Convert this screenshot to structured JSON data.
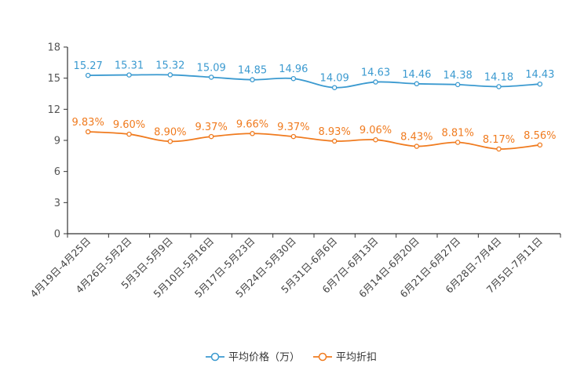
{
  "chart_data": {
    "type": "line",
    "title": "",
    "xlabel": "",
    "ylabel": "",
    "ylim": [
      0,
      18
    ],
    "yticks": [
      0,
      3,
      6,
      9,
      12,
      15,
      18
    ],
    "grid": false,
    "legend_position": "bottom-center",
    "categories": [
      "4月19日-4月25日",
      "4月26日-5月2日",
      "5月3日-5月9日",
      "5月10日-5月16日",
      "5月17日-5月23日",
      "5月24日-5月30日",
      "5月31日-6月6日",
      "6月7日-6月13日",
      "6月14日-6月20日",
      "6月21日-6月27日",
      "6月28日-7月4日",
      "7月5日-7月11日"
    ],
    "series": [
      {
        "name": "平均价格（万）",
        "color": "#3b9ad0",
        "values": [
          15.27,
          15.31,
          15.32,
          15.09,
          14.85,
          14.96,
          14.09,
          14.63,
          14.46,
          14.38,
          14.18,
          14.43
        ],
        "labels": [
          "15.27",
          "15.31",
          "15.32",
          "15.09",
          "14.85",
          "14.96",
          "14.09",
          "14.63",
          "14.46",
          "14.38",
          "14.18",
          "14.43"
        ]
      },
      {
        "name": "平均折扣",
        "color": "#f07b1f",
        "values": [
          9.83,
          9.6,
          8.9,
          9.37,
          9.66,
          9.37,
          8.93,
          9.06,
          8.43,
          8.81,
          8.17,
          8.56
        ],
        "labels": [
          "9.83%",
          "9.60%",
          "8.90%",
          "9.37%",
          "9.66%",
          "9.37%",
          "8.93%",
          "9.06%",
          "8.43%",
          "8.81%",
          "8.17%",
          "8.56%"
        ]
      }
    ]
  }
}
